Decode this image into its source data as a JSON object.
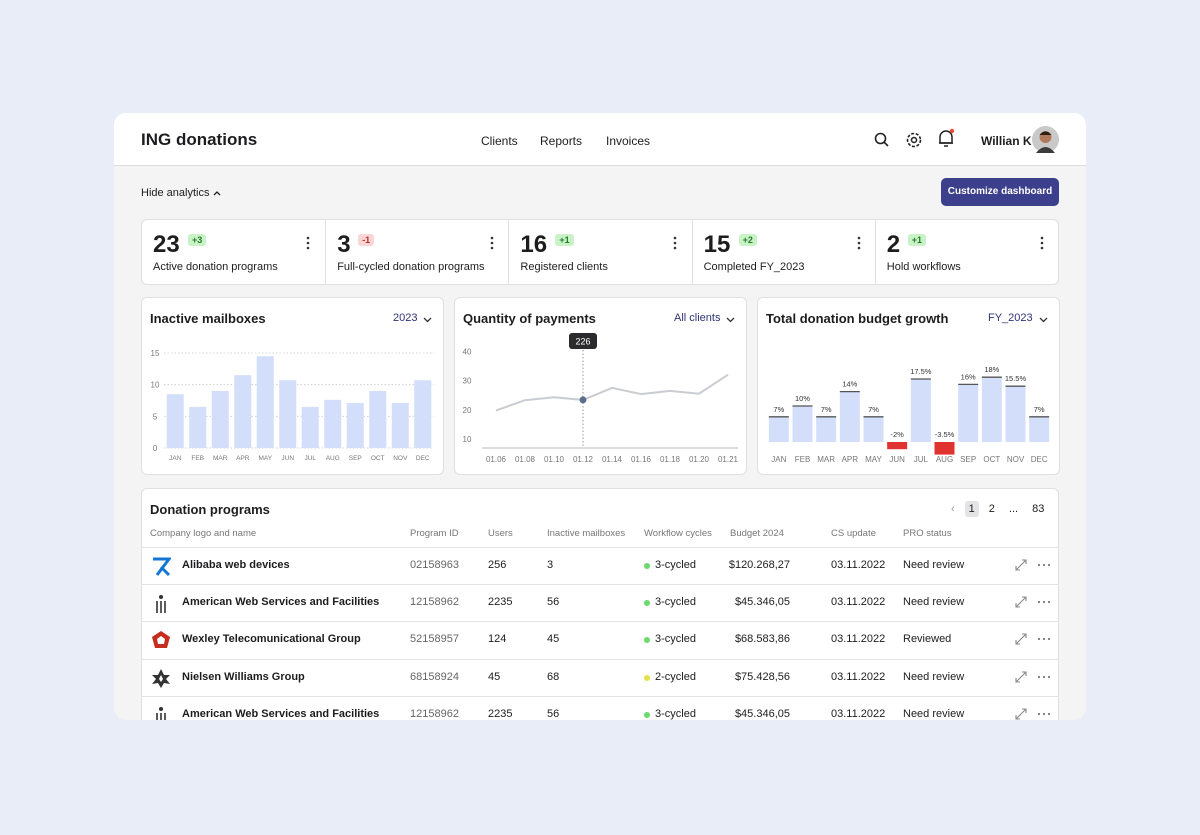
{
  "header": {
    "title": "ING donations",
    "nav": [
      "Clients",
      "Reports",
      "Invoices"
    ],
    "user": "Willian K"
  },
  "toolbar": {
    "toggle": "Hide analytics",
    "button": "Customize dashboard"
  },
  "stats": [
    {
      "value": 23,
      "delta": "+3",
      "label": "Active donation programs"
    },
    {
      "value": 3,
      "delta": "-1",
      "label": "Full-cycled donation programs"
    },
    {
      "value": 16,
      "delta": "+1",
      "label": "Registered clients"
    },
    {
      "value": 15,
      "delta": "+2",
      "label": "Completed FY_2023"
    },
    {
      "value": 2,
      "delta": "+1",
      "label": "Hold workflows"
    }
  ],
  "chart_data": [
    {
      "type": "bar",
      "title": "Inactive mailboxes",
      "filter": "2023",
      "categories": [
        "JAN",
        "FEB",
        "MAR",
        "APR",
        "MAY",
        "JUN",
        "JUL",
        "AUG",
        "SEP",
        "OCT",
        "NOV",
        "DEC"
      ],
      "values": [
        8.5,
        6.5,
        9,
        11.5,
        14.5,
        10.7,
        6.5,
        7.6,
        7.1,
        9,
        7.1,
        10.7
      ],
      "color": "#d3defa",
      "ylim": [
        0,
        15
      ],
      "yticks": [
        0,
        5,
        10,
        15
      ],
      "grid": true
    },
    {
      "type": "line",
      "title": "Quantity of payments",
      "filter": "All clients",
      "categories": [
        "01.06",
        "01.08",
        "01.10",
        "01.12",
        "01.14",
        "01.16",
        "01.18",
        "01.20",
        "01.21"
      ],
      "values": [
        19.8,
        23.3,
        24.3,
        23.4,
        27.5,
        25.4,
        26.5,
        25.5,
        32
      ],
      "color": "#c9ccd3",
      "ylim": [
        7,
        42
      ],
      "yticks": [
        10,
        20,
        30,
        40
      ],
      "annotation": {
        "index": 3,
        "text": "226"
      }
    },
    {
      "type": "bar",
      "title": "Total donation budget growth",
      "filter": "FY_2023",
      "categories": [
        "JAN",
        "FEB",
        "MAR",
        "APR",
        "MAY",
        "JUN",
        "JUL",
        "AUG",
        "SEP",
        "OCT",
        "NOV",
        "DEC"
      ],
      "values": [
        7,
        10,
        7,
        14,
        7,
        -2,
        17.5,
        -3.5,
        16,
        18,
        15.5,
        7
      ],
      "value_labels": [
        "7%",
        "10%",
        "7%",
        "14%",
        "7%",
        "-2%",
        "17.5%",
        "-3.5%",
        "16%",
        "18%",
        "15.5%",
        "7%"
      ],
      "color": "#d3defa",
      "negative_color": "#e0332f",
      "ylim": [
        -4,
        20
      ]
    }
  ],
  "table": {
    "title": "Donation programs",
    "pagination": [
      "1",
      "2",
      "...",
      "83"
    ],
    "columns": [
      "Company logo and name",
      "Program ID",
      "Users",
      "Inactive mailboxes",
      "Workflow cycles",
      "Budget 2024",
      "CS update",
      "PRO status"
    ],
    "rows": [
      [
        "Alibaba web devices",
        "02158963",
        "256",
        "3",
        "3-cycled",
        "$120.268,27",
        "03.11.2022",
        "Need review"
      ],
      [
        "American Web Services and Facilities",
        "12158962",
        "2235",
        "56",
        "3-cycled",
        "$45.346,05",
        "03.11.2022",
        "Need review"
      ],
      [
        "Wexley Telecomunicational Group",
        "52158957",
        "124",
        "45",
        "3-cycled",
        "$68.583,86",
        "03.11.2022",
        "Reviewed"
      ],
      [
        "Nielsen Williams Group",
        "68158924",
        "45",
        "68",
        "2-cycled",
        "$75.428,56",
        "03.11.2022",
        "Need review"
      ],
      [
        "American Web Services and Facilities",
        "12158962",
        "2235",
        "56",
        "3-cycled",
        "$45.346,05",
        "03.11.2022",
        "Need review"
      ]
    ],
    "cycle_colors": [
      "#6bd96b",
      "#6bd96b",
      "#6bd96b",
      "#e8e04a",
      "#6bd96b"
    ]
  }
}
